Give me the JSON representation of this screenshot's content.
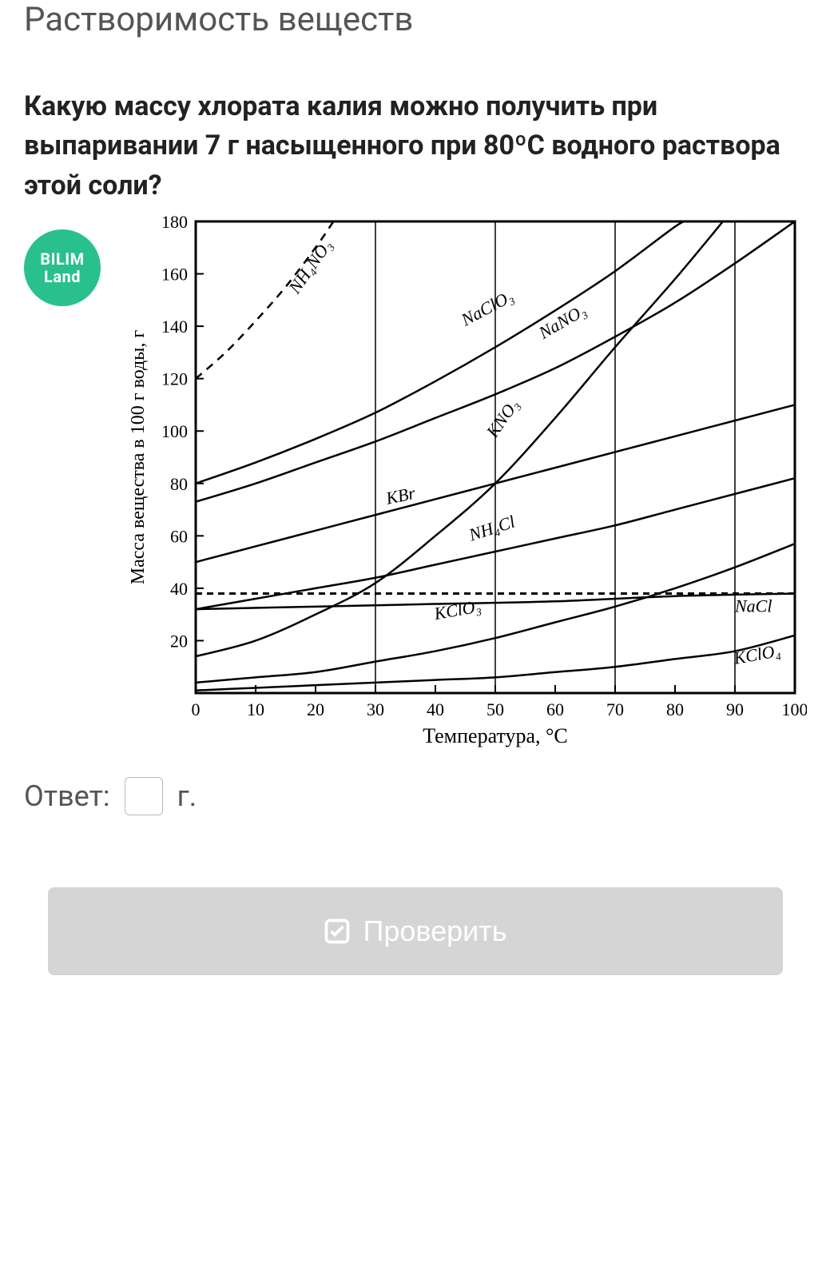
{
  "page_title": "Растворимость веществ",
  "question": "Какую массу хлората калия можно получить при выпаривании 7 г насыщенного при 80ºС водного раствора этой соли?",
  "logo": {
    "line1": "BILIM",
    "line2": "Land",
    "bg": "#29c08e",
    "fg": "#ffffff"
  },
  "chart": {
    "type": "line",
    "xlabel": "Температура, °C",
    "ylabel": "Масса вещества в 100 г воды, г",
    "xlim": [
      0,
      100
    ],
    "ylim": [
      0,
      180
    ],
    "xtick_step": 10,
    "ytick_step": 20,
    "tick_fontsize": 22,
    "label_fontsize": 24,
    "label_font_family": "serif",
    "background_color": "#ffffff",
    "axis_color": "#000000",
    "grid_color": "#000000",
    "grid_lines_x": [
      30,
      50,
      70,
      90
    ],
    "line_width": 2.5,
    "hline_dashed": {
      "y": 38,
      "dash": "8 6"
    },
    "series": [
      {
        "name": "NH4NO3",
        "label": "NH₄NO₃",
        "dashed": true,
        "label_pos": {
          "x": 17,
          "y": 152,
          "rot": -55
        },
        "points": [
          [
            0,
            120
          ],
          [
            5,
            130
          ],
          [
            10,
            142
          ],
          [
            15,
            155
          ],
          [
            20,
            170
          ],
          [
            23,
            180
          ]
        ]
      },
      {
        "name": "NaClO3",
        "label": "NaClO₃",
        "label_pos": {
          "x": 45,
          "y": 140,
          "rot": -28
        },
        "points": [
          [
            0,
            80
          ],
          [
            10,
            88
          ],
          [
            20,
            97
          ],
          [
            30,
            107
          ],
          [
            40,
            119
          ],
          [
            50,
            132
          ],
          [
            60,
            146
          ],
          [
            70,
            161
          ],
          [
            80,
            178
          ],
          [
            82,
            180
          ]
        ]
      },
      {
        "name": "NaNO3",
        "label": "NaNO₃",
        "label_pos": {
          "x": 58,
          "y": 135,
          "rot": -30
        },
        "points": [
          [
            0,
            73
          ],
          [
            10,
            80
          ],
          [
            20,
            88
          ],
          [
            30,
            96
          ],
          [
            40,
            105
          ],
          [
            50,
            114
          ],
          [
            60,
            124
          ],
          [
            70,
            136
          ],
          [
            80,
            149
          ],
          [
            90,
            164
          ],
          [
            100,
            180
          ]
        ]
      },
      {
        "name": "KNO3",
        "label": "KNO₃",
        "label_pos": {
          "x": 50,
          "y": 97,
          "rot": -55
        },
        "points": [
          [
            0,
            14
          ],
          [
            10,
            20
          ],
          [
            20,
            30
          ],
          [
            30,
            42
          ],
          [
            40,
            60
          ],
          [
            50,
            80
          ],
          [
            60,
            105
          ],
          [
            70,
            132
          ],
          [
            80,
            158
          ],
          [
            88,
            180
          ]
        ]
      },
      {
        "name": "KBr",
        "label": "KBr",
        "label_pos": {
          "x": 32,
          "y": 72,
          "rot": -12
        },
        "points": [
          [
            0,
            50
          ],
          [
            10,
            56
          ],
          [
            20,
            62
          ],
          [
            30,
            68
          ],
          [
            40,
            74
          ],
          [
            50,
            80
          ],
          [
            60,
            86
          ],
          [
            70,
            92
          ],
          [
            80,
            98
          ],
          [
            90,
            104
          ],
          [
            100,
            110
          ]
        ]
      },
      {
        "name": "NH4Cl",
        "label": "NH₄Cl",
        "label_pos": {
          "x": 46,
          "y": 58,
          "rot": -18
        },
        "points": [
          [
            0,
            32
          ],
          [
            10,
            36
          ],
          [
            20,
            40
          ],
          [
            30,
            44
          ],
          [
            40,
            49
          ],
          [
            50,
            54
          ],
          [
            60,
            59
          ],
          [
            70,
            64
          ],
          [
            80,
            70
          ],
          [
            90,
            76
          ],
          [
            100,
            82
          ]
        ]
      },
      {
        "name": "NaCl",
        "label": "NaCl",
        "label_pos": {
          "x": 90,
          "y": 31,
          "rot": 0
        },
        "points": [
          [
            0,
            32
          ],
          [
            20,
            33
          ],
          [
            40,
            34
          ],
          [
            60,
            35
          ],
          [
            80,
            37
          ],
          [
            100,
            38
          ]
        ]
      },
      {
        "name": "KClO3",
        "label": "KClO₃",
        "label_pos": {
          "x": 40,
          "y": 28,
          "rot": -10
        },
        "points": [
          [
            0,
            4
          ],
          [
            10,
            6
          ],
          [
            20,
            8
          ],
          [
            30,
            12
          ],
          [
            40,
            16
          ],
          [
            50,
            21
          ],
          [
            60,
            27
          ],
          [
            70,
            33
          ],
          [
            80,
            40
          ],
          [
            90,
            48
          ],
          [
            100,
            57
          ]
        ]
      },
      {
        "name": "KClO4",
        "label": "KClO₄",
        "label_pos": {
          "x": 90,
          "y": 11,
          "rot": -10
        },
        "points": [
          [
            0,
            1
          ],
          [
            10,
            2
          ],
          [
            20,
            3
          ],
          [
            30,
            4
          ],
          [
            40,
            5
          ],
          [
            50,
            6
          ],
          [
            60,
            8
          ],
          [
            70,
            10
          ],
          [
            80,
            13
          ],
          [
            90,
            16
          ],
          [
            100,
            22
          ]
        ]
      }
    ]
  },
  "answer": {
    "label": "Ответ:",
    "unit": "г.",
    "value": ""
  },
  "check_button": {
    "label": "Проверить"
  },
  "colors": {
    "title": "#555555",
    "question": "#222222",
    "btn_bg": "#d5d5d5",
    "btn_fg": "#ffffff"
  }
}
